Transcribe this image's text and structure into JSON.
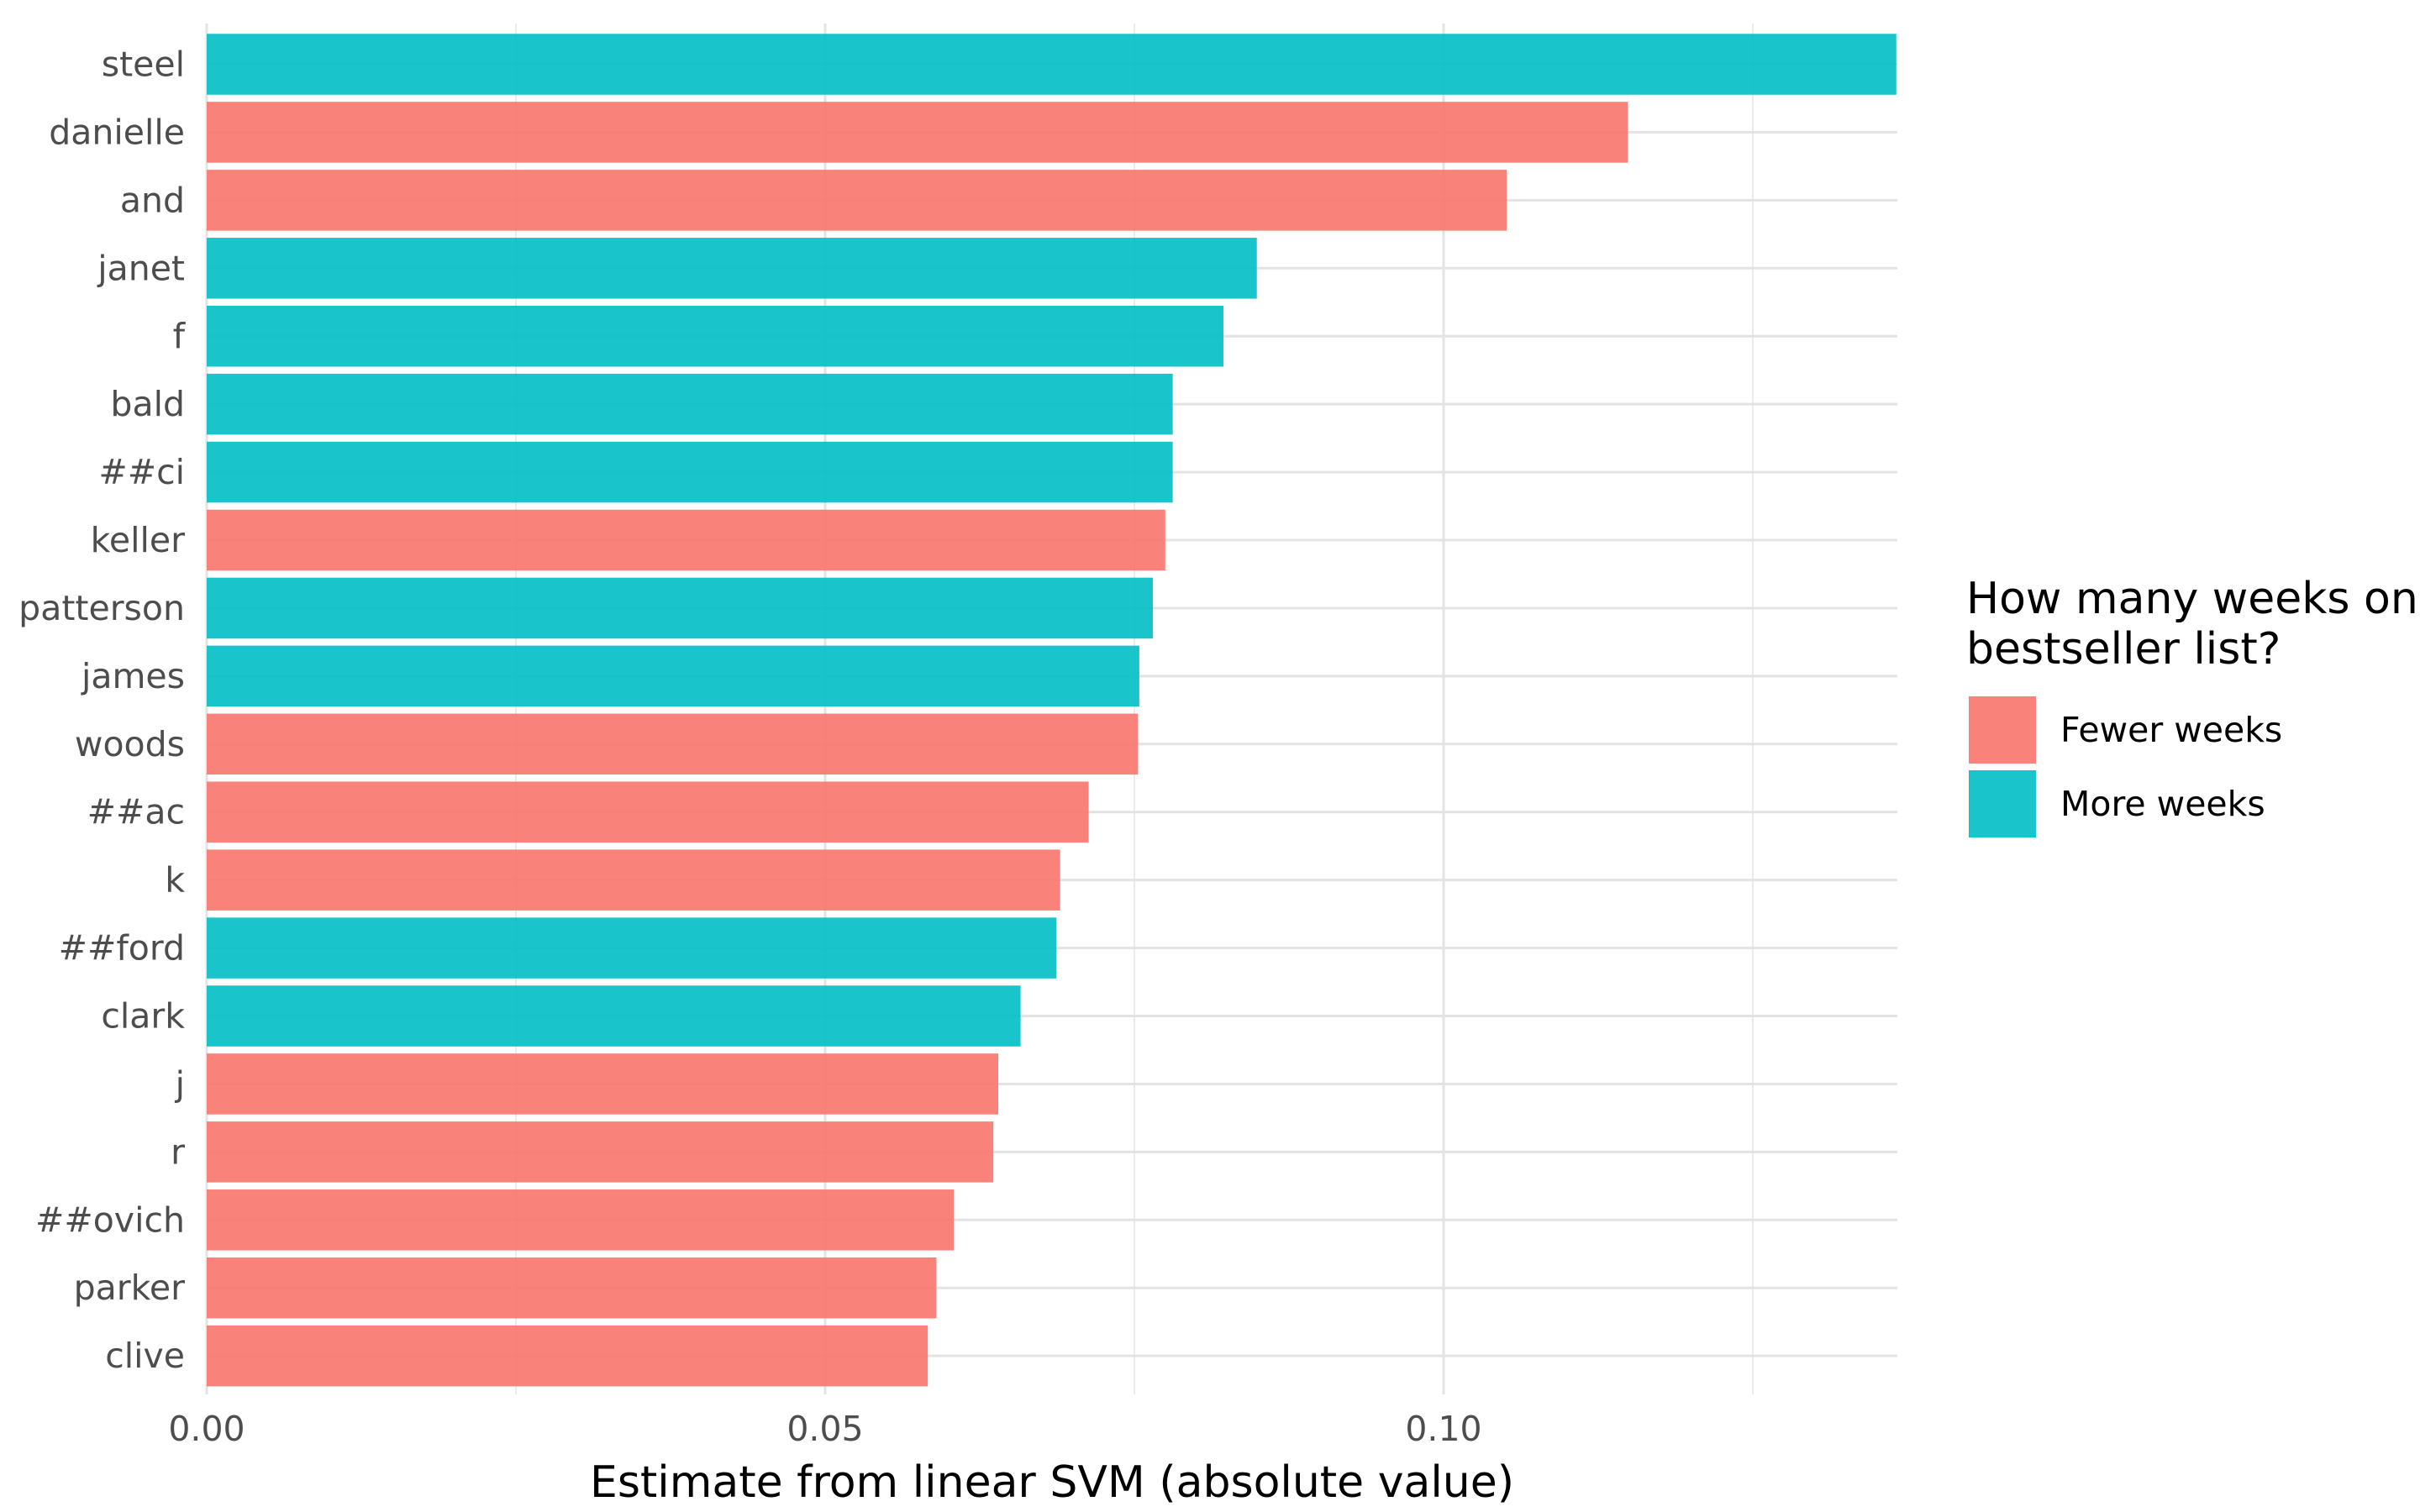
{
  "chart_data": {
    "type": "bar",
    "orientation": "horizontal",
    "xlabel": "Estimate from linear SVM (absolute value)",
    "ylabel": "",
    "xlim": [
      0,
      0.1366
    ],
    "x_ticks": [
      0.0,
      0.05,
      0.1
    ],
    "x_tick_labels": [
      "0.00",
      "0.05",
      "0.10"
    ],
    "grid": true,
    "legend": {
      "title_lines": [
        "How many weeks on",
        "bestseller list?"
      ],
      "position": "right",
      "items": [
        {
          "label": "Fewer weeks",
          "color": "#F8766D"
        },
        {
          "label": "More weeks",
          "color": "#00BFC4"
        }
      ]
    },
    "categories": [
      "steel",
      "danielle",
      "and",
      "janet",
      "f",
      "bald",
      "##ci",
      "keller",
      "patterson",
      "james",
      "woods",
      "##ac",
      "k",
      "##ford",
      "clark",
      "j",
      "r",
      "##ovich",
      "parker",
      "clive"
    ],
    "values": [
      0.1366,
      0.1149,
      0.1051,
      0.0849,
      0.0822,
      0.0781,
      0.0781,
      0.0775,
      0.0765,
      0.0754,
      0.0753,
      0.0713,
      0.069,
      0.0687,
      0.0658,
      0.064,
      0.0636,
      0.0604,
      0.059,
      0.0583
    ],
    "groups": [
      "More weeks",
      "Fewer weeks",
      "Fewer weeks",
      "More weeks",
      "More weeks",
      "More weeks",
      "More weeks",
      "Fewer weeks",
      "More weeks",
      "More weeks",
      "Fewer weeks",
      "Fewer weeks",
      "Fewer weeks",
      "More weeks",
      "More weeks",
      "Fewer weeks",
      "Fewer weeks",
      "Fewer weeks",
      "Fewer weeks",
      "Fewer weeks"
    ]
  }
}
